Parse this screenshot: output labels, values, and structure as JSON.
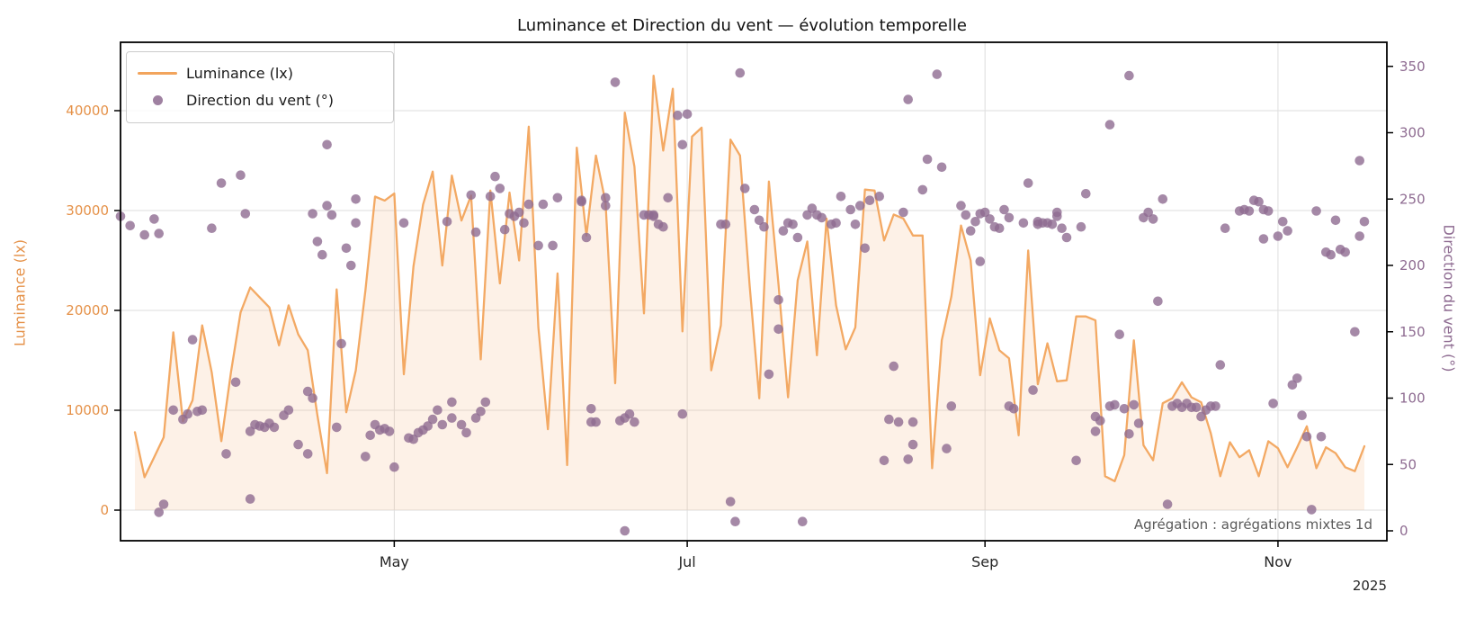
{
  "title": "Luminance et Direction du vent — évolution temporelle",
  "annotation": "Agrégation : agrégations mixtes 1d",
  "colors": {
    "line_orange": "#F2A45C",
    "fill_orange": "rgba(242,164,92,0.15)",
    "scatter_purple": "#8E6B91",
    "left_tick_color": "#E59148",
    "right_tick_color": "#8E6B91",
    "grid": "#DEDEDE",
    "spine": "#000000",
    "x_tick_color": "#262626",
    "annotation_color": "#5a5a5a"
  },
  "chart_data": {
    "type": "line",
    "subtype": "line+scatter dual-axis time series",
    "x_start_date": "2025-03-08",
    "x_tick_labels": [
      "May",
      "Jul",
      "Sep",
      "Nov"
    ],
    "x_tick_days": [
      54,
      115,
      177,
      238
    ],
    "year": "2025",
    "left_axis": {
      "label": "Luminance (lx)",
      "ticks": [
        0,
        10000,
        20000,
        30000,
        40000
      ],
      "range": [
        0,
        46800
      ]
    },
    "right_axis": {
      "label": "Direction du vent (°)",
      "ticks": [
        0,
        50,
        100,
        150,
        200,
        250,
        300,
        350
      ],
      "range": [
        0,
        368
      ]
    },
    "grid": true,
    "legend_position": "upper-left",
    "series": [
      {
        "name": "Luminance (lx)",
        "type": "line",
        "axis": "left",
        "start_day": 0,
        "step_days": 2,
        "values": [
          7800,
          3300,
          5300,
          7300,
          17800,
          8900,
          11000,
          18500,
          13800,
          6900,
          13800,
          19800,
          22300,
          21300,
          20300,
          16500,
          20500,
          17600,
          16000,
          9500,
          3700,
          22100,
          9800,
          14000,
          22000,
          31400,
          31000,
          31700,
          13600,
          24400,
          30600,
          33900,
          24500,
          33500,
          29000,
          31500,
          15100,
          32000,
          22700,
          31800,
          25000,
          38400,
          18300,
          8100,
          23700,
          4500,
          36300,
          27500,
          35500,
          30800,
          12700,
          39800,
          34400,
          19700,
          43500,
          36000,
          42200,
          17900,
          37400,
          38300,
          14000,
          18500,
          37100,
          35500,
          22500,
          11200,
          32900,
          22600,
          11300,
          23000,
          26900,
          15500,
          29200,
          20500,
          16100,
          18300,
          32100,
          32000,
          27000,
          29600,
          29200,
          27500,
          27500,
          4200,
          17000,
          21400,
          28500,
          25000,
          13500,
          19200,
          16000,
          15200,
          7500,
          26000,
          12600,
          16700,
          12900,
          13000,
          19400,
          19400,
          19000,
          3400,
          2900,
          5500,
          17000,
          6500,
          5000,
          10700,
          11200,
          12800,
          11300,
          10800,
          7700,
          3400,
          6800,
          5300,
          6000,
          3400,
          6900,
          6200,
          4300,
          6300,
          8400,
          4200,
          6300,
          5700,
          4300,
          3900,
          6400
        ]
      },
      {
        "name": "Direction du vent (°)",
        "type": "scatter",
        "axis": "right",
        "points": [
          [
            -3,
            237
          ],
          [
            -1,
            230
          ],
          [
            2,
            223
          ],
          [
            4,
            235
          ],
          [
            5,
            224
          ],
          [
            5,
            14
          ],
          [
            6,
            20
          ],
          [
            8,
            91
          ],
          [
            10,
            84
          ],
          [
            11,
            88
          ],
          [
            12,
            144
          ],
          [
            13,
            90
          ],
          [
            14,
            91
          ],
          [
            16,
            228
          ],
          [
            18,
            262
          ],
          [
            19,
            58
          ],
          [
            21,
            112
          ],
          [
            22,
            268
          ],
          [
            23,
            239
          ],
          [
            24,
            75
          ],
          [
            24,
            24
          ],
          [
            25,
            80
          ],
          [
            26,
            79
          ],
          [
            27,
            78
          ],
          [
            28,
            81
          ],
          [
            29,
            78
          ],
          [
            31,
            87
          ],
          [
            32,
            91
          ],
          [
            34,
            65
          ],
          [
            36,
            58
          ],
          [
            36,
            105
          ],
          [
            37,
            100
          ],
          [
            37,
            239
          ],
          [
            38,
            218
          ],
          [
            39,
            208
          ],
          [
            40,
            245
          ],
          [
            40,
            291
          ],
          [
            41,
            238
          ],
          [
            42,
            78
          ],
          [
            43,
            141
          ],
          [
            44,
            213
          ],
          [
            45,
            200
          ],
          [
            46,
            232
          ],
          [
            46,
            250
          ],
          [
            48,
            56
          ],
          [
            49,
            72
          ],
          [
            50,
            80
          ],
          [
            51,
            76
          ],
          [
            52,
            77
          ],
          [
            53,
            75
          ],
          [
            54,
            48
          ],
          [
            56,
            232
          ],
          [
            57,
            70
          ],
          [
            58,
            69
          ],
          [
            59,
            74
          ],
          [
            60,
            76
          ],
          [
            61,
            79
          ],
          [
            62,
            84
          ],
          [
            63,
            91
          ],
          [
            64,
            80
          ],
          [
            65,
            233
          ],
          [
            66,
            97
          ],
          [
            66,
            85
          ],
          [
            68,
            80
          ],
          [
            69,
            74
          ],
          [
            70,
            253
          ],
          [
            71,
            225
          ],
          [
            71,
            85
          ],
          [
            72,
            90
          ],
          [
            73,
            97
          ],
          [
            74,
            252
          ],
          [
            75,
            267
          ],
          [
            76,
            258
          ],
          [
            77,
            227
          ],
          [
            78,
            239
          ],
          [
            79,
            237
          ],
          [
            80,
            240
          ],
          [
            81,
            232
          ],
          [
            82,
            246
          ],
          [
            84,
            215
          ],
          [
            85,
            246
          ],
          [
            87,
            215
          ],
          [
            88,
            251
          ],
          [
            93,
            249
          ],
          [
            93,
            248
          ],
          [
            94,
            221
          ],
          [
            95,
            92
          ],
          [
            95,
            82
          ],
          [
            96,
            82
          ],
          [
            98,
            245
          ],
          [
            98,
            251
          ],
          [
            100,
            338
          ],
          [
            101,
            83
          ],
          [
            102,
            0
          ],
          [
            102,
            85
          ],
          [
            103,
            88
          ],
          [
            104,
            82
          ],
          [
            106,
            238
          ],
          [
            107,
            238
          ],
          [
            108,
            238
          ],
          [
            108,
            237
          ],
          [
            109,
            231
          ],
          [
            110,
            229
          ],
          [
            111,
            251
          ],
          [
            113,
            313
          ],
          [
            114,
            88
          ],
          [
            114,
            291
          ],
          [
            115,
            314
          ],
          [
            122,
            231
          ],
          [
            123,
            231
          ],
          [
            124,
            22
          ],
          [
            125,
            7
          ],
          [
            126,
            345
          ],
          [
            127,
            258
          ],
          [
            129,
            242
          ],
          [
            130,
            234
          ],
          [
            131,
            229
          ],
          [
            132,
            118
          ],
          [
            134,
            174
          ],
          [
            134,
            152
          ],
          [
            135,
            226
          ],
          [
            136,
            232
          ],
          [
            137,
            231
          ],
          [
            138,
            221
          ],
          [
            139,
            7
          ],
          [
            140,
            238
          ],
          [
            141,
            243
          ],
          [
            142,
            238
          ],
          [
            143,
            236
          ],
          [
            145,
            231
          ],
          [
            146,
            232
          ],
          [
            147,
            252
          ],
          [
            149,
            242
          ],
          [
            150,
            231
          ],
          [
            151,
            245
          ],
          [
            152,
            213
          ],
          [
            153,
            249
          ],
          [
            155,
            252
          ],
          [
            156,
            53
          ],
          [
            157,
            84
          ],
          [
            158,
            124
          ],
          [
            159,
            82
          ],
          [
            160,
            240
          ],
          [
            161,
            54
          ],
          [
            161,
            325
          ],
          [
            162,
            65
          ],
          [
            162,
            82
          ],
          [
            164,
            257
          ],
          [
            165,
            280
          ],
          [
            167,
            344
          ],
          [
            168,
            274
          ],
          [
            169,
            62
          ],
          [
            170,
            94
          ],
          [
            172,
            245
          ],
          [
            173,
            238
          ],
          [
            174,
            226
          ],
          [
            175,
            233
          ],
          [
            176,
            203
          ],
          [
            176,
            239
          ],
          [
            177,
            240
          ],
          [
            178,
            235
          ],
          [
            179,
            229
          ],
          [
            180,
            228
          ],
          [
            181,
            242
          ],
          [
            182,
            236
          ],
          [
            182,
            94
          ],
          [
            183,
            92
          ],
          [
            185,
            232
          ],
          [
            186,
            262
          ],
          [
            187,
            106
          ],
          [
            188,
            231
          ],
          [
            188,
            233
          ],
          [
            189,
            232
          ],
          [
            190,
            232
          ],
          [
            191,
            231
          ],
          [
            192,
            240
          ],
          [
            192,
            237
          ],
          [
            193,
            228
          ],
          [
            194,
            221
          ],
          [
            196,
            53
          ],
          [
            197,
            229
          ],
          [
            198,
            254
          ],
          [
            200,
            75
          ],
          [
            200,
            86
          ],
          [
            201,
            83
          ],
          [
            203,
            306
          ],
          [
            203,
            94
          ],
          [
            204,
            95
          ],
          [
            205,
            148
          ],
          [
            206,
            92
          ],
          [
            207,
            73
          ],
          [
            207,
            343
          ],
          [
            208,
            95
          ],
          [
            209,
            81
          ],
          [
            210,
            236
          ],
          [
            211,
            240
          ],
          [
            212,
            235
          ],
          [
            213,
            173
          ],
          [
            214,
            250
          ],
          [
            215,
            20
          ],
          [
            216,
            94
          ],
          [
            217,
            96
          ],
          [
            218,
            93
          ],
          [
            219,
            96
          ],
          [
            220,
            93
          ],
          [
            221,
            93
          ],
          [
            222,
            86
          ],
          [
            223,
            91
          ],
          [
            224,
            94
          ],
          [
            225,
            94
          ],
          [
            226,
            125
          ],
          [
            227,
            228
          ],
          [
            230,
            241
          ],
          [
            231,
            242
          ],
          [
            232,
            241
          ],
          [
            233,
            249
          ],
          [
            234,
            248
          ],
          [
            235,
            220
          ],
          [
            235,
            242
          ],
          [
            236,
            241
          ],
          [
            237,
            96
          ],
          [
            238,
            222
          ],
          [
            239,
            233
          ],
          [
            240,
            226
          ],
          [
            241,
            110
          ],
          [
            242,
            115
          ],
          [
            243,
            87
          ],
          [
            244,
            71
          ],
          [
            245,
            16
          ],
          [
            246,
            241
          ],
          [
            247,
            71
          ],
          [
            248,
            210
          ],
          [
            249,
            208
          ],
          [
            250,
            234
          ],
          [
            251,
            212
          ],
          [
            252,
            210
          ],
          [
            254,
            150
          ],
          [
            255,
            222
          ],
          [
            255,
            279
          ],
          [
            256,
            233
          ]
        ]
      }
    ]
  }
}
